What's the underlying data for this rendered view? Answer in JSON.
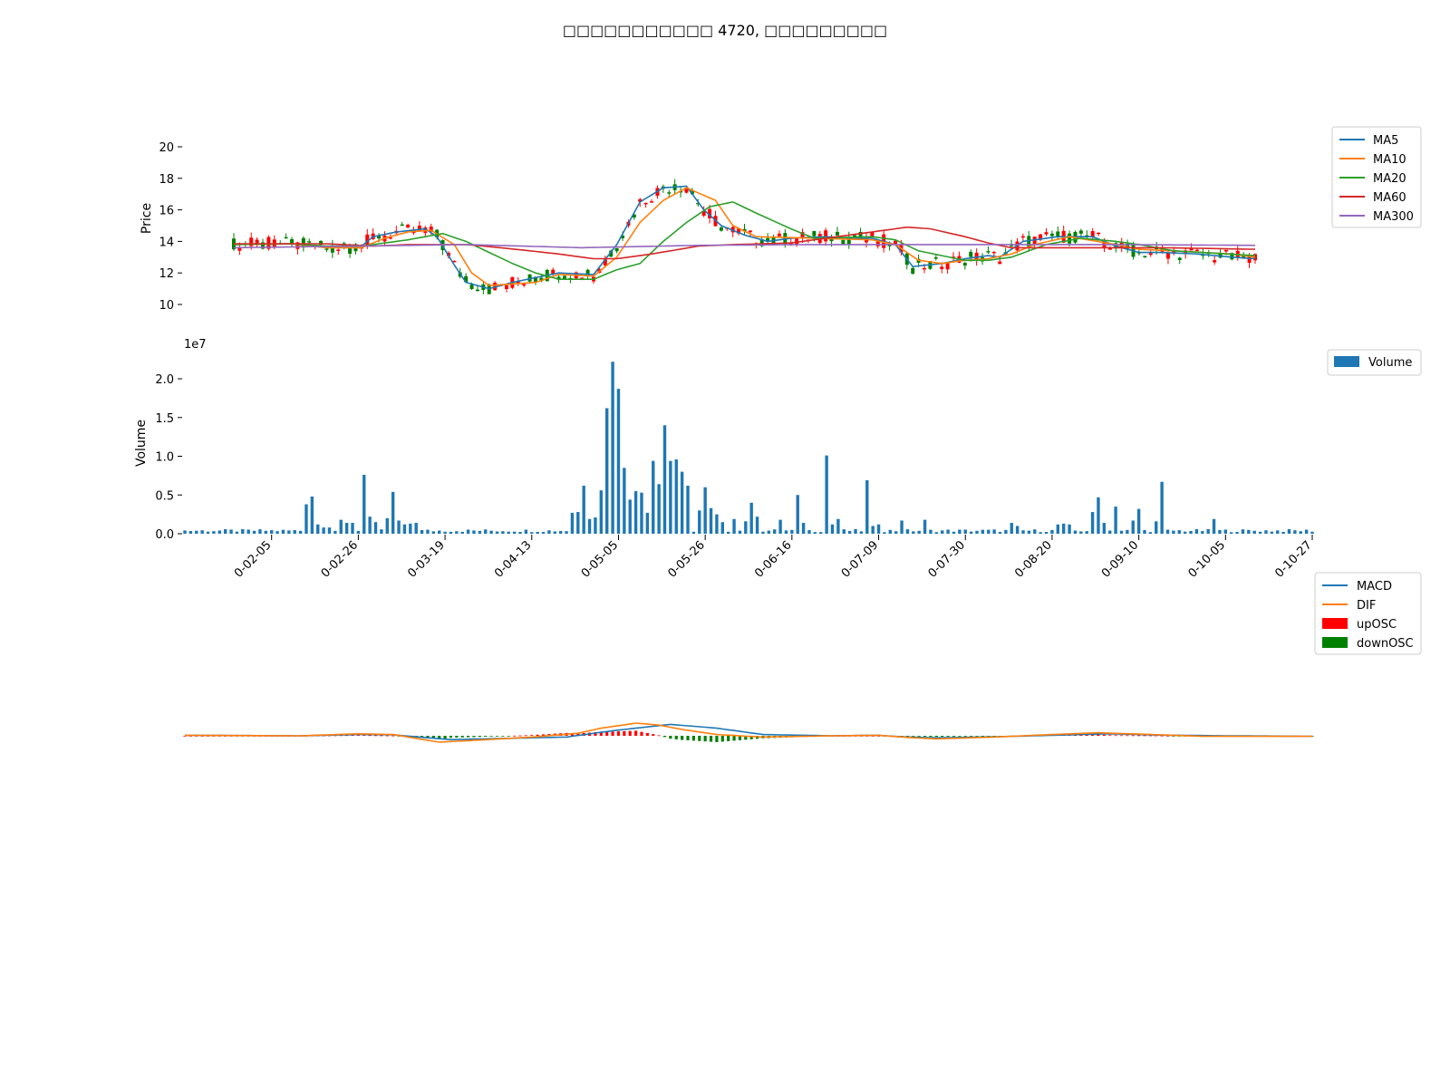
{
  "title": "□□□□□□□□□□□ 4720, □□□□□□□□□",
  "chart_data": [
    {
      "type": "candlestick",
      "ylabel": "Price",
      "ylim": [
        9,
        21.5
      ],
      "yticks": [
        10,
        12,
        14,
        16,
        18,
        20
      ],
      "legend": [
        "MA5",
        "MA10",
        "MA20",
        "MA60",
        "MA300"
      ],
      "legend_position": "top-right",
      "colors": {
        "MA5": "#1f77b4",
        "MA10": "#ff7f0e",
        "MA20": "#2ca02c",
        "MA60": "#d62728",
        "MA300": "#9467bd",
        "up": "#ff0000",
        "down": "#008000"
      },
      "note_levels": "MA levels approximated from the plot",
      "ma_knots": {
        "MA5": [
          [
            0,
            13.8
          ],
          [
            10,
            13.85
          ],
          [
            16,
            13.6
          ],
          [
            22,
            13.7
          ],
          [
            24,
            14.3
          ],
          [
            28,
            14.6
          ],
          [
            33,
            14.8
          ],
          [
            35,
            14.3
          ],
          [
            38,
            12.5
          ],
          [
            40,
            11.4
          ],
          [
            44,
            11.0
          ],
          [
            48,
            11.4
          ],
          [
            56,
            12.0
          ],
          [
            62,
            11.9
          ],
          [
            66,
            13.8
          ],
          [
            70,
            16.5
          ],
          [
            74,
            17.4
          ],
          [
            78,
            17.5
          ],
          [
            81,
            16.0
          ],
          [
            84,
            15.0
          ],
          [
            88,
            14.4
          ],
          [
            92,
            14.0
          ],
          [
            96,
            14.2
          ],
          [
            102,
            14.3
          ],
          [
            106,
            14.2
          ],
          [
            110,
            14.2
          ],
          [
            114,
            13.8
          ],
          [
            117,
            12.4
          ],
          [
            122,
            12.6
          ],
          [
            126,
            12.9
          ],
          [
            130,
            13.1
          ],
          [
            132,
            13.0
          ],
          [
            136,
            14.0
          ],
          [
            142,
            14.3
          ],
          [
            148,
            14.3
          ],
          [
            152,
            13.7
          ],
          [
            156,
            13.3
          ],
          [
            160,
            13.3
          ],
          [
            166,
            13.2
          ],
          [
            172,
            13.0
          ],
          [
            176,
            12.9
          ]
        ],
        "MA10": [
          [
            0,
            13.8
          ],
          [
            10,
            13.85
          ],
          [
            16,
            13.6
          ],
          [
            22,
            13.6
          ],
          [
            26,
            14.2
          ],
          [
            30,
            14.6
          ],
          [
            34,
            14.7
          ],
          [
            38,
            13.8
          ],
          [
            41,
            12.0
          ],
          [
            44,
            11.2
          ],
          [
            52,
            11.4
          ],
          [
            56,
            11.9
          ],
          [
            62,
            11.8
          ],
          [
            66,
            13.0
          ],
          [
            70,
            15.2
          ],
          [
            74,
            16.6
          ],
          [
            78,
            17.4
          ],
          [
            83,
            16.6
          ],
          [
            86,
            15.0
          ],
          [
            90,
            14.3
          ],
          [
            100,
            14.2
          ],
          [
            110,
            14.1
          ],
          [
            114,
            13.8
          ],
          [
            118,
            12.8
          ],
          [
            122,
            12.6
          ],
          [
            126,
            12.8
          ],
          [
            130,
            12.9
          ],
          [
            134,
            13.2
          ],
          [
            138,
            13.8
          ],
          [
            144,
            14.3
          ],
          [
            152,
            13.8
          ],
          [
            156,
            13.5
          ],
          [
            162,
            13.4
          ],
          [
            172,
            13.2
          ],
          [
            176,
            13.0
          ]
        ],
        "MA20": [
          [
            0,
            13.8
          ],
          [
            10,
            13.85
          ],
          [
            16,
            13.7
          ],
          [
            22,
            13.7
          ],
          [
            26,
            13.9
          ],
          [
            30,
            14.1
          ],
          [
            36,
            14.5
          ],
          [
            40,
            14.0
          ],
          [
            44,
            13.3
          ],
          [
            48,
            12.6
          ],
          [
            52,
            12.0
          ],
          [
            56,
            11.6
          ],
          [
            62,
            11.6
          ],
          [
            66,
            12.2
          ],
          [
            70,
            12.6
          ],
          [
            74,
            14.0
          ],
          [
            78,
            15.2
          ],
          [
            82,
            16.2
          ],
          [
            86,
            16.5
          ],
          [
            90,
            15.8
          ],
          [
            96,
            14.8
          ],
          [
            100,
            14.2
          ],
          [
            110,
            14.3
          ],
          [
            114,
            14.1
          ],
          [
            118,
            13.4
          ],
          [
            122,
            13.1
          ],
          [
            126,
            12.8
          ],
          [
            130,
            12.8
          ],
          [
            134,
            13.0
          ],
          [
            140,
            13.8
          ],
          [
            146,
            14.2
          ],
          [
            152,
            14.0
          ],
          [
            156,
            13.8
          ],
          [
            162,
            13.4
          ],
          [
            176,
            13.1
          ]
        ],
        "MA60": [
          [
            0,
            13.85
          ],
          [
            16,
            13.85
          ],
          [
            24,
            13.7
          ],
          [
            30,
            13.8
          ],
          [
            36,
            13.8
          ],
          [
            40,
            13.8
          ],
          [
            46,
            13.6
          ],
          [
            56,
            13.2
          ],
          [
            62,
            12.9
          ],
          [
            66,
            12.9
          ],
          [
            72,
            13.2
          ],
          [
            80,
            13.7
          ],
          [
            86,
            13.8
          ],
          [
            96,
            13.9
          ],
          [
            102,
            14.2
          ],
          [
            110,
            14.6
          ],
          [
            116,
            14.9
          ],
          [
            120,
            14.8
          ],
          [
            126,
            14.3
          ],
          [
            130,
            13.9
          ],
          [
            134,
            13.6
          ],
          [
            140,
            13.6
          ],
          [
            150,
            13.6
          ],
          [
            160,
            13.6
          ],
          [
            176,
            13.5
          ]
        ],
        "MA300": [
          [
            0,
            13.6
          ],
          [
            20,
            13.7
          ],
          [
            40,
            13.8
          ],
          [
            60,
            13.6
          ],
          [
            80,
            13.75
          ],
          [
            100,
            13.8
          ],
          [
            120,
            13.8
          ],
          [
            150,
            13.8
          ],
          [
            176,
            13.75
          ]
        ]
      }
    },
    {
      "type": "bar",
      "ylabel": "Volume",
      "scale_label": "1e7",
      "ylim": [
        0,
        2.35
      ],
      "yticks": [
        "0.0",
        "0.5",
        "1.0",
        "1.5",
        "2.0"
      ],
      "legend": [
        "Volume"
      ],
      "legend_position": "top-right",
      "color": "#1f77b4",
      "x_tick_labels": [
        "0-02-05",
        "0-02-26",
        "0-03-19",
        "0-04-13",
        "0-05-05",
        "0-05-26",
        "0-06-16",
        "0-07-09",
        "0-07-30",
        "0-08-20",
        "0-09-10",
        "0-10-05",
        "0-10-27"
      ],
      "x_tick_index": [
        15,
        30,
        45,
        60,
        75,
        90,
        105,
        120,
        135,
        150,
        165,
        180,
        195
      ],
      "num_bars": 196,
      "volume_peaks": [
        [
          21,
          0.38
        ],
        [
          22,
          0.48
        ],
        [
          23,
          0.12
        ],
        [
          24,
          0.08
        ],
        [
          25,
          0.08
        ],
        [
          27,
          0.18
        ],
        [
          28,
          0.14
        ],
        [
          29,
          0.14
        ],
        [
          31,
          0.76
        ],
        [
          32,
          0.22
        ],
        [
          33,
          0.15
        ],
        [
          35,
          0.2
        ],
        [
          36,
          0.54
        ],
        [
          37,
          0.17
        ],
        [
          38,
          0.12
        ],
        [
          39,
          0.13
        ],
        [
          40,
          0.14
        ],
        [
          67,
          0.27
        ],
        [
          68,
          0.28
        ],
        [
          69,
          0.62
        ],
        [
          70,
          0.19
        ],
        [
          71,
          0.21
        ],
        [
          72,
          0.56
        ],
        [
          73,
          1.62
        ],
        [
          74,
          2.22
        ],
        [
          75,
          1.87
        ],
        [
          76,
          0.85
        ],
        [
          77,
          0.44
        ],
        [
          78,
          0.55
        ],
        [
          79,
          0.53
        ],
        [
          80,
          0.27
        ],
        [
          81,
          0.94
        ],
        [
          82,
          0.64
        ],
        [
          83,
          1.4
        ],
        [
          84,
          0.94
        ],
        [
          85,
          0.96
        ],
        [
          86,
          0.8
        ],
        [
          87,
          0.62
        ],
        [
          89,
          0.3
        ],
        [
          90,
          0.6
        ],
        [
          91,
          0.33
        ],
        [
          92,
          0.25
        ],
        [
          93,
          0.15
        ],
        [
          95,
          0.19
        ],
        [
          97,
          0.16
        ],
        [
          98,
          0.4
        ],
        [
          99,
          0.22
        ],
        [
          103,
          0.18
        ],
        [
          106,
          0.5
        ],
        [
          107,
          0.14
        ],
        [
          111,
          1.01
        ],
        [
          112,
          0.12
        ],
        [
          113,
          0.19
        ],
        [
          118,
          0.69
        ],
        [
          119,
          0.1
        ],
        [
          120,
          0.12
        ],
        [
          124,
          0.17
        ],
        [
          128,
          0.18
        ],
        [
          143,
          0.14
        ],
        [
          144,
          0.1
        ],
        [
          151,
          0.12
        ],
        [
          152,
          0.13
        ],
        [
          153,
          0.12
        ],
        [
          157,
          0.28
        ],
        [
          158,
          0.47
        ],
        [
          159,
          0.14
        ],
        [
          161,
          0.35
        ],
        [
          164,
          0.17
        ],
        [
          165,
          0.32
        ],
        [
          168,
          0.16
        ],
        [
          169,
          0.67
        ],
        [
          178,
          0.19
        ]
      ]
    },
    {
      "type": "line",
      "legend": [
        "MACD",
        "DIF",
        "upOSC",
        "downOSC"
      ],
      "legend_position": "top-right",
      "colors": {
        "MACD": "#1f77b4",
        "DIF": "#ff7f0e",
        "upOSC": "#ff0000",
        "downOSC": "#008000"
      },
      "ylim": [
        -1.2,
        1.2
      ],
      "macd_knots": [
        [
          0,
          0.02
        ],
        [
          20,
          0.0
        ],
        [
          30,
          0.05
        ],
        [
          36,
          0.04
        ],
        [
          42,
          -0.08
        ],
        [
          46,
          -0.15
        ],
        [
          56,
          -0.1
        ],
        [
          66,
          -0.05
        ],
        [
          74,
          0.2
        ],
        [
          84,
          0.45
        ],
        [
          92,
          0.3
        ],
        [
          100,
          0.05
        ],
        [
          112,
          0.0
        ],
        [
          120,
          0.02
        ],
        [
          124,
          -0.04
        ],
        [
          130,
          -0.08
        ],
        [
          140,
          -0.04
        ],
        [
          150,
          0.02
        ],
        [
          160,
          0.08
        ],
        [
          168,
          0.03
        ],
        [
          180,
          0.0
        ],
        [
          196,
          -0.02
        ]
      ],
      "dif_knots": [
        [
          0,
          0.02
        ],
        [
          20,
          0.0
        ],
        [
          30,
          0.08
        ],
        [
          36,
          0.05
        ],
        [
          40,
          -0.1
        ],
        [
          44,
          -0.25
        ],
        [
          50,
          -0.18
        ],
        [
          60,
          -0.05
        ],
        [
          68,
          0.1
        ],
        [
          72,
          0.3
        ],
        [
          78,
          0.5
        ],
        [
          82,
          0.42
        ],
        [
          86,
          0.25
        ],
        [
          92,
          0.05
        ],
        [
          100,
          -0.05
        ],
        [
          112,
          0.0
        ],
        [
          120,
          0.02
        ],
        [
          126,
          -0.08
        ],
        [
          130,
          -0.12
        ],
        [
          140,
          -0.05
        ],
        [
          150,
          0.05
        ],
        [
          158,
          0.12
        ],
        [
          166,
          0.06
        ],
        [
          176,
          -0.02
        ],
        [
          196,
          -0.02
        ]
      ]
    }
  ]
}
